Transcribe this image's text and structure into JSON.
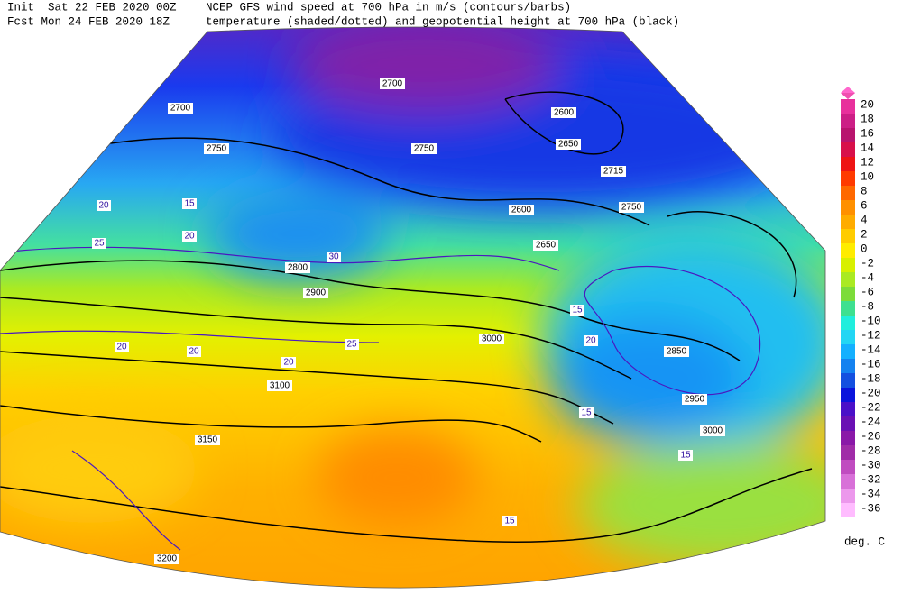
{
  "header": {
    "init": "Init  Sat 22 FEB 2020 00Z",
    "fcst": "Fcst Mon 24 FEB 2020 18Z",
    "title1": "NCEP GFS wind speed at 700 hPa in m/s (contours/barbs)",
    "title2": "temperature (shaded/dotted) and geopotential height at 700 hPa (black)"
  },
  "colorbar": {
    "labels": [
      20,
      18,
      16,
      14,
      12,
      10,
      8,
      6,
      4,
      2,
      0,
      -2,
      -4,
      -6,
      -8,
      -10,
      -12,
      -14,
      -16,
      -18,
      -20,
      -22,
      -24,
      -26,
      -28,
      -30,
      -32,
      -34,
      -36
    ],
    "colors": [
      "#e8309c",
      "#cc1f86",
      "#b8146e",
      "#d8104a",
      "#ee1414",
      "#ff3a00",
      "#ff6800",
      "#ff9000",
      "#ffac00",
      "#ffcc00",
      "#ffec00",
      "#d8f000",
      "#aaea22",
      "#7cdc3a",
      "#3ee090",
      "#20eedd",
      "#22d6f4",
      "#14b0ff",
      "#1482f0",
      "#1450e0",
      "#0a14dc",
      "#4a10c8",
      "#6a10b4",
      "#8a18a8",
      "#a02ca8",
      "#c04cc0",
      "#d870d8",
      "#ec98ec",
      "#ffbcff"
    ],
    "unit": "deg. C"
  },
  "map": {
    "heights": [
      2700,
      2750,
      2700,
      2600,
      2650,
      2750,
      2715,
      2750,
      2600,
      2650,
      2800,
      2900,
      3000,
      3100,
      3150,
      3200,
      2850,
      2950,
      3000
    ],
    "wind_speeds": [
      20,
      20,
      20,
      20,
      20,
      20,
      15,
      15,
      15,
      15,
      25,
      25,
      30,
      15
    ]
  }
}
